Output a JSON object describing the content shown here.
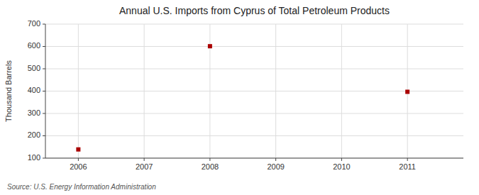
{
  "chart_data": {
    "type": "scatter",
    "title": "Annual U.S. Imports from Cyprus of Total Petroleum Products",
    "ylabel": "Thousand Barrels",
    "annotation": "Source: U.S. Energy Information Administration",
    "x": [
      2006,
      2008,
      2011
    ],
    "values": [
      139,
      601,
      397
    ],
    "color": "#aa0000",
    "marker": "square",
    "xlim": [
      2005.5,
      2011.85
    ],
    "ylim": [
      100,
      700
    ],
    "xticks": [
      2006,
      2007,
      2008,
      2009,
      2010,
      2011
    ],
    "yticks": [
      100,
      200,
      300,
      400,
      500,
      600,
      700
    ],
    "grid": true
  }
}
